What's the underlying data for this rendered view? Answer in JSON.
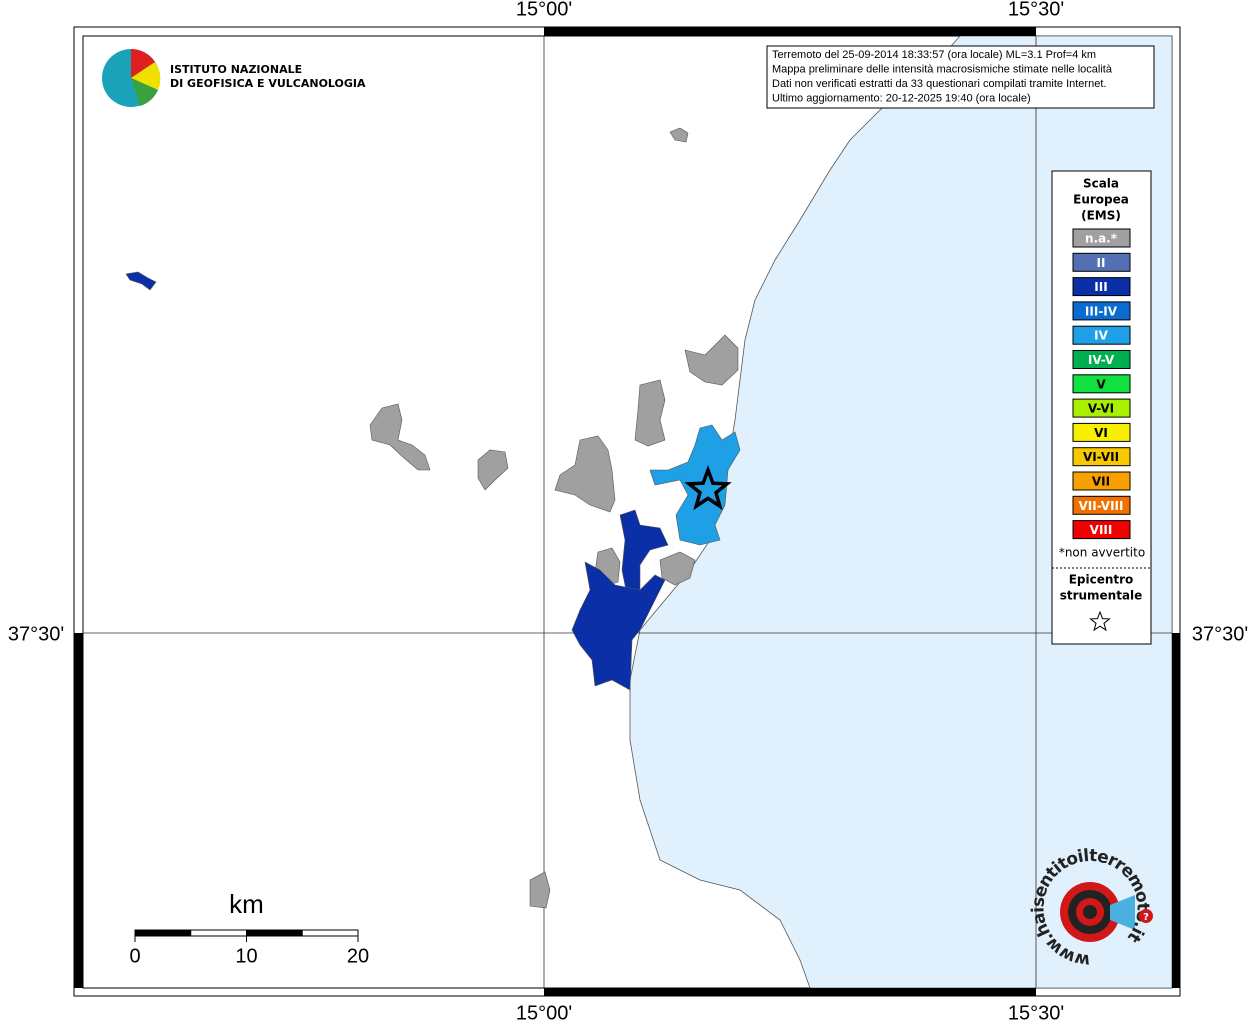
{
  "map": {
    "grid_labels": {
      "lon_left": "15°00'",
      "lon_right": "15°30'",
      "lat": "37°30'"
    },
    "logo": {
      "line1": "ISTITUTO NAZIONALE",
      "line2": "DI GEOFISICA E VULCANOLOGIA"
    },
    "info": [
      "Terremoto del 25-09-2014 18:33:57 (ora locale) ML=3.1 Prof=4 km",
      "Mappa preliminare delle intensità macrosismiche stimate nelle località",
      "Dati non verificati estratti da 33 questionari compilati tramite Internet.",
      "Ultimo aggiornamento: 20-12-2025 19:40 (ora locale)"
    ],
    "legend": {
      "title": [
        "Scala",
        "Europea",
        "(EMS)"
      ],
      "entries": [
        {
          "label": "n.a.*",
          "color": "#a0a0a0"
        },
        {
          "label": "II",
          "color": "#5470b4"
        },
        {
          "label": "III",
          "color": "#0a2fa6"
        },
        {
          "label": "III-IV",
          "color": "#0a6cd0"
        },
        {
          "label": "IV",
          "color": "#1e9fe6"
        },
        {
          "label": "IV-V",
          "color": "#00b050"
        },
        {
          "label": "V",
          "color": "#10e040"
        },
        {
          "label": "V-VI",
          "color": "#a8f000"
        },
        {
          "label": "VI",
          "color": "#f8f000"
        },
        {
          "label": "VI-VII",
          "color": "#f8c800"
        },
        {
          "label": "VII",
          "color": "#f8a000"
        },
        {
          "label": "VII-VIII",
          "color": "#f07000"
        },
        {
          "label": "VIII",
          "color": "#f00000"
        }
      ],
      "note": "*non avvertito",
      "epicenter": [
        "Epicentro",
        "strumentale"
      ]
    },
    "scale_bar": {
      "unit": "km",
      "ticks": [
        0,
        10,
        20
      ]
    },
    "site_logo": "www.haisentitoilterremoto.it",
    "site_logo_mark": "?"
  }
}
